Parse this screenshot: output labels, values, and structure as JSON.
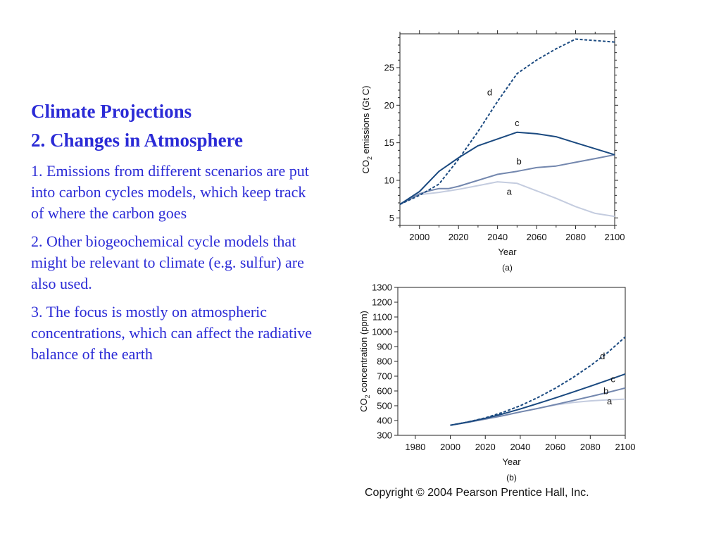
{
  "slide": {
    "title_line1": "Climate Projections",
    "title_line2": "2. Changes in Atmosphere",
    "paragraphs": [
      "1. Emissions from different scenarios are put into carbon cycles models, which keep track of where the carbon goes",
      "2. Other biogeochemical cycle models that might be relevant to climate (e.g. sulfur) are also used.",
      "3. The focus is mostly on atmospheric concentrations, which can affect the radiative balance of the earth"
    ],
    "copyright": "Copyright © 2004 Pearson Prentice Hall, Inc."
  },
  "colors": {
    "text": "#2b2bd6",
    "a": "#c4ccdf",
    "b": "#7387ae",
    "c": "#1b4a80",
    "d": "#1b4a80"
  },
  "chart_data": [
    {
      "type": "line",
      "panel_label": "(a)",
      "xlabel": "Year",
      "ylabel": "CO2 emissions (Gt C)",
      "xlim": [
        1990,
        2100
      ],
      "ylim": [
        4,
        29.5
      ],
      "xticks": [
        2000,
        2020,
        2040,
        2060,
        2080,
        2100
      ],
      "yticks": [
        5,
        10,
        15,
        20,
        25
      ],
      "series": [
        {
          "name": "a",
          "style": "solid",
          "x": [
            1990,
            2000,
            2010,
            2020,
            2030,
            2040,
            2050,
            2060,
            2070,
            2080,
            2090,
            2100
          ],
          "y": [
            6.8,
            8.1,
            8.4,
            8.8,
            9.3,
            9.8,
            9.6,
            8.6,
            7.6,
            6.5,
            5.6,
            5.2
          ],
          "label_at": [
            2046,
            8.1
          ]
        },
        {
          "name": "b",
          "style": "solid",
          "x": [
            1990,
            2000,
            2005,
            2010,
            2015,
            2020,
            2030,
            2040,
            2050,
            2060,
            2070,
            2080,
            2090,
            2100
          ],
          "y": [
            6.8,
            8.2,
            8.6,
            8.9,
            8.9,
            9.2,
            10.0,
            10.8,
            11.2,
            11.7,
            11.9,
            12.4,
            12.9,
            13.4
          ],
          "label_at": [
            2051,
            12.1
          ]
        },
        {
          "name": "c",
          "style": "solid",
          "x": [
            1990,
            2000,
            2010,
            2020,
            2030,
            2040,
            2050,
            2060,
            2070,
            2080,
            2090,
            2100
          ],
          "y": [
            6.8,
            8.5,
            11.2,
            13.0,
            14.6,
            15.5,
            16.4,
            16.2,
            15.8,
            15.0,
            14.2,
            13.4
          ],
          "label_at": [
            2050,
            17.2
          ]
        },
        {
          "name": "d",
          "style": "dashed",
          "x": [
            1990,
            2000,
            2010,
            2020,
            2030,
            2040,
            2050,
            2060,
            2070,
            2080,
            2090,
            2100
          ],
          "y": [
            6.8,
            8.0,
            9.5,
            12.8,
            16.5,
            20.5,
            24.2,
            26.0,
            27.5,
            28.8,
            28.6,
            28.4
          ],
          "label_at": [
            2036,
            21.3
          ]
        }
      ]
    },
    {
      "type": "line",
      "panel_label": "(b)",
      "xlabel": "Year",
      "ylabel": "CO2 concentration (ppm)",
      "xlim": [
        1970,
        2100
      ],
      "ylim": [
        300,
        1300
      ],
      "xticks": [
        1980,
        2000,
        2020,
        2040,
        2060,
        2080,
        2100
      ],
      "yticks": [
        300,
        400,
        500,
        600,
        700,
        800,
        900,
        1000,
        1100,
        1200,
        1300
      ],
      "series": [
        {
          "name": "a",
          "style": "solid",
          "x": [
            2000,
            2010,
            2020,
            2030,
            2040,
            2050,
            2060,
            2070,
            2080,
            2090,
            2100
          ],
          "y": [
            368,
            388,
            410,
            433,
            458,
            482,
            505,
            522,
            533,
            540,
            545
          ],
          "label_at": [
            2091,
            510
          ]
        },
        {
          "name": "b",
          "style": "solid",
          "x": [
            2000,
            2010,
            2020,
            2030,
            2040,
            2050,
            2060,
            2070,
            2080,
            2090,
            2100
          ],
          "y": [
            368,
            388,
            410,
            433,
            458,
            482,
            508,
            535,
            562,
            590,
            620
          ],
          "label_at": [
            2089,
            578
          ]
        },
        {
          "name": "c",
          "style": "solid",
          "x": [
            2000,
            2010,
            2020,
            2030,
            2040,
            2050,
            2060,
            2070,
            2080,
            2090,
            2100
          ],
          "y": [
            368,
            390,
            415,
            445,
            478,
            515,
            553,
            592,
            632,
            673,
            715
          ],
          "label_at": [
            2093,
            660
          ]
        },
        {
          "name": "d",
          "style": "dashed",
          "x": [
            2000,
            2010,
            2020,
            2030,
            2040,
            2050,
            2060,
            2070,
            2080,
            2090,
            2100
          ],
          "y": [
            368,
            390,
            418,
            455,
            500,
            555,
            618,
            690,
            770,
            860,
            965
          ],
          "label_at": [
            2087,
            815
          ]
        }
      ]
    }
  ]
}
